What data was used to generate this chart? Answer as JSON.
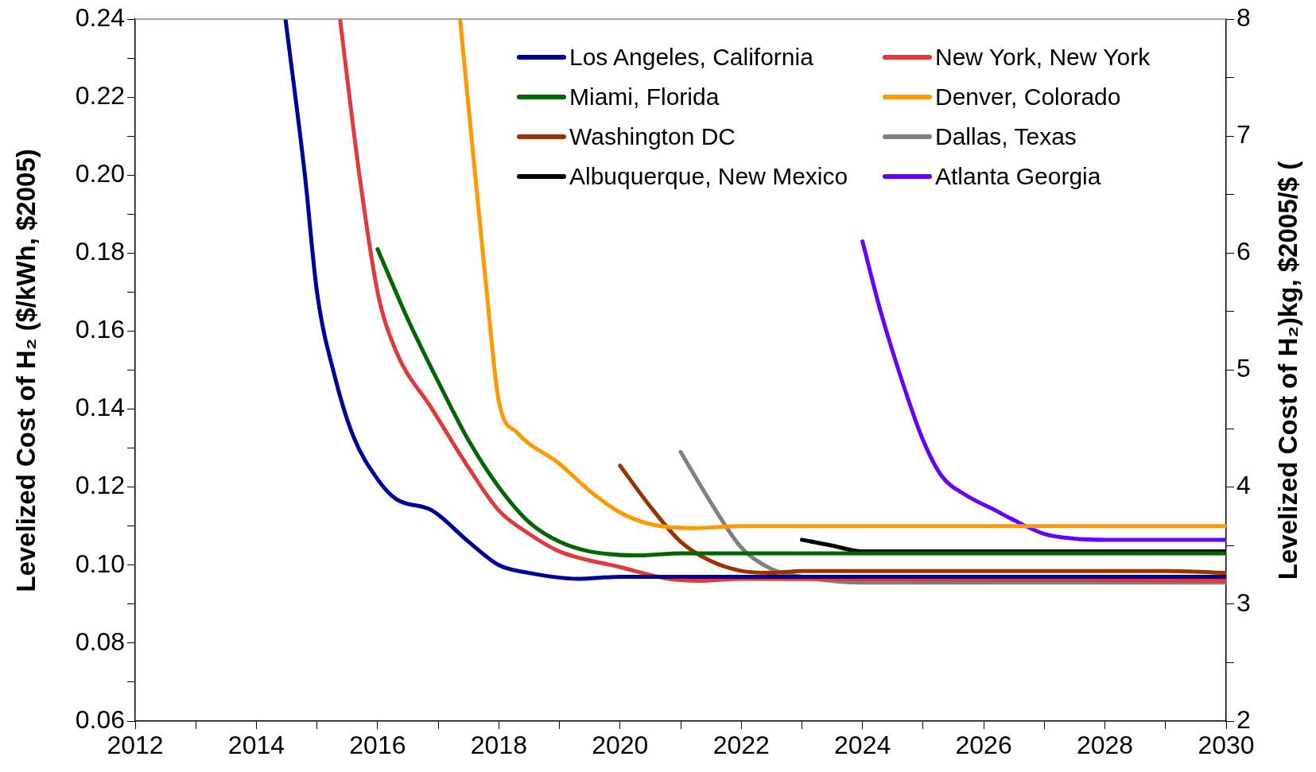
{
  "chart_data": {
    "type": "line",
    "ylabel": "Levelized Cost of H₂ ($/kWh, $2005)",
    "y2label": "Levelized Cost of H₂)kg, $2005/$ (",
    "xlim": [
      2012,
      2030
    ],
    "xticks": [
      2012,
      {
        "value": 2013,
        "label": null
      },
      2014,
      {
        "value": 2015,
        "label": null
      },
      2016,
      {
        "value": 2017,
        "label": null
      },
      2018,
      {
        "value": 2019,
        "label": null
      },
      2020,
      {
        "value": 2021,
        "label": null
      },
      2022,
      {
        "value": 2023,
        "label": null
      },
      2024,
      {
        "value": 2025,
        "label": null
      },
      2026,
      {
        "value": 2027,
        "label": null
      },
      2028,
      {
        "value": 2029,
        "label": null
      },
      2030
    ],
    "ylim": [
      0.06,
      0.24
    ],
    "yticks": [
      {
        "value": 0.06,
        "label": "0.06"
      },
      {
        "value": 0.07,
        "label": null
      },
      {
        "value": 0.08,
        "label": "0.08"
      },
      {
        "value": 0.09,
        "label": null
      },
      {
        "value": 0.1,
        "label": "0.10"
      },
      {
        "value": 0.11,
        "label": null
      },
      {
        "value": 0.12,
        "label": "0.12"
      },
      {
        "value": 0.13,
        "label": null
      },
      {
        "value": 0.14,
        "label": "0.14"
      },
      {
        "value": 0.15,
        "label": null
      },
      {
        "value": 0.16,
        "label": "0.16"
      },
      {
        "value": 0.17,
        "label": null
      },
      {
        "value": 0.18,
        "label": "0.18"
      },
      {
        "value": 0.19,
        "label": null
      },
      {
        "value": 0.2,
        "label": "0.20"
      },
      {
        "value": 0.21,
        "label": null
      },
      {
        "value": 0.22,
        "label": "0.22"
      },
      {
        "value": 0.23,
        "label": null
      },
      {
        "value": 0.24,
        "label": "0.24"
      }
    ],
    "y2lim": [
      2,
      8
    ],
    "y2ticks": [
      2,
      {
        "value": 2.5,
        "label": null
      },
      3,
      {
        "value": 3.5,
        "label": null
      },
      4,
      {
        "value": 4.5,
        "label": null
      },
      5,
      {
        "value": 5.5,
        "label": null
      },
      6,
      {
        "value": 6.5,
        "label": null
      },
      7,
      {
        "value": 7.5,
        "label": null
      },
      8
    ],
    "grid": false,
    "legend": "top right",
    "series": [
      {
        "name": "Los Angeles, California",
        "color": "#000099",
        "x": [
          2014.48,
          2014.8,
          2015.0,
          2015.3,
          2015.6,
          2016.0,
          2016.3,
          2016.9,
          2017.5,
          2018.0,
          2018.5,
          2019.3,
          2020.0,
          2030.0
        ],
        "values": [
          0.24,
          0.2,
          0.17,
          0.148,
          0.133,
          0.122,
          0.117,
          0.114,
          0.106,
          0.1,
          0.098,
          0.0965,
          0.097,
          0.097
        ]
      },
      {
        "name": "New York, New York",
        "color": "#e03a3e",
        "x": [
          2015.38,
          2015.7,
          2016.0,
          2016.3,
          2016.9,
          2017.5,
          2018.0,
          2018.5,
          2019.0,
          2020.0,
          2020.8,
          2021.3,
          2022.0,
          2030.0
        ],
        "values": [
          0.24,
          0.2,
          0.17,
          0.155,
          0.14,
          0.125,
          0.114,
          0.108,
          0.1035,
          0.0995,
          0.0965,
          0.096,
          0.0965,
          0.096
        ]
      },
      {
        "name": "Miami, Florida",
        "color": "#006600",
        "x": [
          2016.0,
          2016.5,
          2017.0,
          2017.5,
          2018.0,
          2018.5,
          2019.0,
          2019.5,
          2020.3,
          2021.0,
          2030.0
        ],
        "values": [
          0.181,
          0.163,
          0.147,
          0.132,
          0.12,
          0.111,
          0.106,
          0.1035,
          0.1025,
          0.103,
          0.103
        ]
      },
      {
        "name": "Denver, Colorado",
        "color": "#ff9900",
        "x": [
          2017.36,
          2017.8,
          2018.0,
          2018.3,
          2019.0,
          2019.5,
          2020.0,
          2020.5,
          2021.2,
          2022.0,
          2030.0
        ],
        "values": [
          0.24,
          0.17,
          0.142,
          0.134,
          0.126,
          0.119,
          0.1135,
          0.1105,
          0.1095,
          0.11,
          0.11
        ]
      },
      {
        "name": "Washington DC",
        "color": "#993300",
        "x": [
          2020.0,
          2020.5,
          2021.0,
          2021.5,
          2022.0,
          2022.5,
          2023.0,
          2029.0,
          2030.0
        ],
        "values": [
          0.1255,
          0.115,
          0.106,
          0.101,
          0.0985,
          0.098,
          0.0985,
          0.0985,
          0.098
        ]
      },
      {
        "name": "Dallas, Texas",
        "color": "#808080",
        "x": [
          2021.0,
          2021.5,
          2022.0,
          2022.5,
          2023.0,
          2024.0,
          2030.0
        ],
        "values": [
          0.129,
          0.116,
          0.1045,
          0.099,
          0.097,
          0.0955,
          0.0955
        ]
      },
      {
        "name": "Albuquerque, New Mexico",
        "color": "#000000",
        "x": [
          2023.0,
          2023.5,
          2024.0,
          2025.0,
          2030.0
        ],
        "values": [
          0.1065,
          0.105,
          0.1035,
          0.1035,
          0.1035
        ]
      },
      {
        "name": "Atlanta Georgia",
        "color": "#6600ff",
        "x": [
          2024.0,
          2024.3,
          2024.7,
          2025.0,
          2025.3,
          2025.7,
          2026.2,
          2026.5,
          2027.0,
          2027.5,
          2028.0,
          2030.0
        ],
        "values": [
          0.183,
          0.165,
          0.145,
          0.132,
          0.123,
          0.118,
          0.114,
          0.1115,
          0.108,
          0.1068,
          0.1065,
          0.1065
        ]
      }
    ]
  }
}
